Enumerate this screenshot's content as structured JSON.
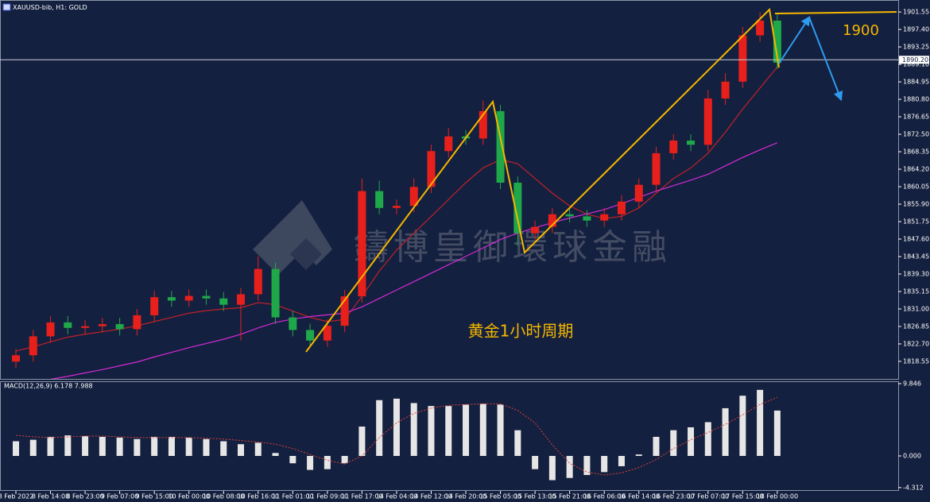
{
  "header": {
    "symbol": "XAUUSD-bib, H1: GOLD"
  },
  "chart_data": [
    {
      "type": "candlestick",
      "categories": [
        "8 Feb 2022",
        null,
        "8 Feb 14:00",
        null,
        "8 Feb 23:00",
        null,
        "9 Feb 07:00",
        null,
        "9 Feb 15:00",
        null,
        "10 Feb 00:00",
        null,
        "10 Feb 08:00",
        null,
        "10 Feb 16:00",
        null,
        "11 Feb 01:00",
        null,
        "11 Feb 09:00",
        null,
        "11 Feb 17:00",
        null,
        "14 Feb 04:00",
        null,
        "14 Feb 12:00",
        null,
        "14 Feb 20:00",
        null,
        "15 Feb 05:00",
        null,
        "15 Feb 13:00",
        null,
        "15 Feb 21:00",
        null,
        "16 Feb 06:00",
        null,
        "16 Feb 14:00",
        null,
        "16 Feb 23:00",
        null,
        "17 Feb 07:00",
        null,
        "17 Feb 15:00",
        null,
        "18 Feb 00:00"
      ],
      "open": [
        1818.5,
        1820.0,
        1824.5,
        1827.8,
        1826.5,
        1826.9,
        1827.4,
        1826.2,
        1829.5,
        1833.8,
        1833.0,
        1834.1,
        1833.5,
        1832.0,
        1834.5,
        1840.5,
        1829.0,
        1826.0,
        1823.5,
        1827.0,
        1834.0,
        1859.0,
        1855.0,
        1855.5,
        1860.0,
        1868.5,
        1872.0,
        1871.5,
        1878.0,
        1861.0,
        1849.0,
        1850.5,
        1853.5,
        1853.0,
        1852.0,
        1853.5,
        1856.5,
        1860.5,
        1868.0,
        1871.0,
        1870.0,
        1881.0,
        1885.0,
        1896.0,
        1899.5
      ],
      "high": [
        1821.5,
        1826.0,
        1829.3,
        1829.3,
        1828.4,
        1828.9,
        1828.9,
        1831.0,
        1835.3,
        1835.3,
        1835.6,
        1835.6,
        1835.0,
        1836.0,
        1843.5,
        1842.0,
        1830.5,
        1827.5,
        1828.5,
        1835.5,
        1862.0,
        1861.5,
        1857.0,
        1862.0,
        1870.0,
        1874.0,
        1873.5,
        1880.5,
        1879.5,
        1862.5,
        1852.0,
        1855.0,
        1855.0,
        1854.5,
        1855.0,
        1858.0,
        1862.0,
        1869.5,
        1872.5,
        1872.5,
        1883.0,
        1887.0,
        1898.0,
        1901.5,
        1901.0
      ],
      "low": [
        1817.0,
        1818.5,
        1823.0,
        1825.0,
        1825.0,
        1825.4,
        1824.7,
        1824.7,
        1828.0,
        1831.5,
        1831.5,
        1832.0,
        1830.5,
        1823.5,
        1833.0,
        1827.5,
        1824.5,
        1822.0,
        1822.0,
        1825.5,
        1832.5,
        1853.5,
        1853.5,
        1854.0,
        1858.5,
        1867.0,
        1870.0,
        1870.0,
        1859.5,
        1846.0,
        1847.5,
        1849.0,
        1851.5,
        1850.5,
        1850.5,
        1852.0,
        1855.0,
        1859.0,
        1866.5,
        1868.5,
        1868.5,
        1879.5,
        1883.5,
        1894.5,
        1888.0
      ],
      "close": [
        1820.0,
        1824.5,
        1827.8,
        1826.5,
        1826.9,
        1827.4,
        1826.2,
        1829.5,
        1833.8,
        1833.0,
        1834.1,
        1833.5,
        1832.0,
        1834.5,
        1840.5,
        1829.0,
        1826.0,
        1823.5,
        1827.0,
        1834.0,
        1859.0,
        1855.0,
        1855.5,
        1860.0,
        1868.5,
        1872.0,
        1871.5,
        1878.0,
        1861.0,
        1849.0,
        1850.5,
        1853.5,
        1853.0,
        1852.0,
        1853.5,
        1856.5,
        1860.5,
        1868.0,
        1871.0,
        1870.0,
        1881.0,
        1885.0,
        1896.0,
        1899.5,
        1889.5
      ],
      "up_color": "#e8201c",
      "down_color": "#1fa84a",
      "series": [
        {
          "color": "#c0212a",
          "values": [
            1821.0,
            1822.0,
            1823.2,
            1824.3,
            1825.0,
            1825.6,
            1826.2,
            1827.0,
            1828.0,
            1829.0,
            1830.0,
            1830.6,
            1831.0,
            1831.3,
            1832.5,
            1832.0,
            1830.5,
            1829.0,
            1828.0,
            1828.5,
            1834.0,
            1840.0,
            1845.0,
            1849.0,
            1853.0,
            1857.0,
            1861.0,
            1864.5,
            1866.5,
            1865.5,
            1862.0,
            1858.5,
            1855.5,
            1853.5,
            1852.5,
            1853.0,
            1855.0,
            1858.5,
            1862.0,
            1864.5,
            1868.0,
            1873.0,
            1878.5,
            1883.5,
            1888.5
          ]
        },
        {
          "color": "#d42ad6",
          "values": [
            1813.0,
            1813.6,
            1814.3,
            1815.0,
            1815.8,
            1816.6,
            1817.5,
            1818.4,
            1819.6,
            1820.7,
            1821.8,
            1822.8,
            1823.8,
            1825.0,
            1826.5,
            1827.8,
            1828.6,
            1829.2,
            1829.6,
            1830.0,
            1831.5,
            1833.5,
            1835.5,
            1837.5,
            1839.5,
            1841.5,
            1843.5,
            1845.5,
            1847.5,
            1849.0,
            1850.3,
            1851.5,
            1852.6,
            1853.6,
            1854.6,
            1856.0,
            1857.5,
            1859.0,
            1860.3,
            1861.6,
            1863.0,
            1865.0,
            1867.0,
            1868.8,
            1870.5
          ]
        }
      ],
      "ylim": [
        1814.2,
        1904.4
      ],
      "yticks": [
        1901.55,
        {
          "value": 1897.4,
          "label": "1897.40"
        },
        1893.25,
        {
          "value": 1889.1,
          "label": "1889.10"
        },
        1884.95,
        {
          "value": 1880.8,
          "label": "1880.80"
        },
        1876.65,
        {
          "value": 1872.5,
          "label": "1872.50"
        },
        1868.35,
        {
          "value": 1864.2,
          "label": "1864.20"
        },
        1860.05,
        {
          "value": 1855.9,
          "label": "1855.90"
        },
        1851.75,
        {
          "value": 1847.6,
          "label": "1847.60"
        },
        1843.45,
        {
          "value": 1839.3,
          "label": "1839.30"
        },
        1835.15,
        {
          "value": 1831,
          "label": "1831.00"
        },
        1826.85,
        {
          "value": 1822.7,
          "label": "1822.70"
        },
        1818.55
      ],
      "current_price": {
        "value": 1890.2,
        "label": "1890.20"
      },
      "annotations": [
        "1900",
        "黄金1小时周期"
      ],
      "watermark": "鑄博皇御環球金融"
    },
    {
      "type": "macd",
      "title": "MACD(12,26,9) 6.178 7.988",
      "histogram": [
        2.0,
        2.2,
        2.6,
        2.8,
        2.7,
        2.6,
        2.5,
        2.3,
        2.6,
        2.6,
        2.5,
        2.3,
        2.0,
        1.6,
        1.8,
        0.4,
        -1.0,
        -1.9,
        -1.8,
        -1.0,
        4.0,
        7.6,
        7.8,
        7.2,
        6.8,
        6.8,
        7.0,
        7.1,
        7.0,
        3.5,
        -1.8,
        -3.3,
        -3.0,
        -2.6,
        -2.2,
        -1.4,
        0.2,
        2.6,
        3.5,
        3.9,
        4.6,
        6.5,
        8.2,
        9.0,
        6.178
      ],
      "signal": [
        2.8,
        2.6,
        2.5,
        2.6,
        2.7,
        2.7,
        2.6,
        2.5,
        2.5,
        2.5,
        2.5,
        2.4,
        2.3,
        2.1,
        1.9,
        1.6,
        1.0,
        0.2,
        -0.6,
        -1.1,
        0.0,
        2.5,
        4.5,
        5.8,
        6.5,
        6.9,
        7.0,
        7.1,
        7.1,
        6.2,
        4.5,
        1.5,
        -1.0,
        -2.2,
        -2.6,
        -2.3,
        -1.6,
        -0.5,
        1.0,
        2.2,
        3.2,
        4.3,
        5.6,
        7.0,
        7.988
      ],
      "bar_color": "#e6e6e6",
      "signal_color": "#e0403a",
      "ylim": [
        -4.76,
        10.17
      ],
      "yticks": [
        9.846,
        {
          "value": 0,
          "label": "0.000"
        },
        -4.312
      ]
    }
  ]
}
